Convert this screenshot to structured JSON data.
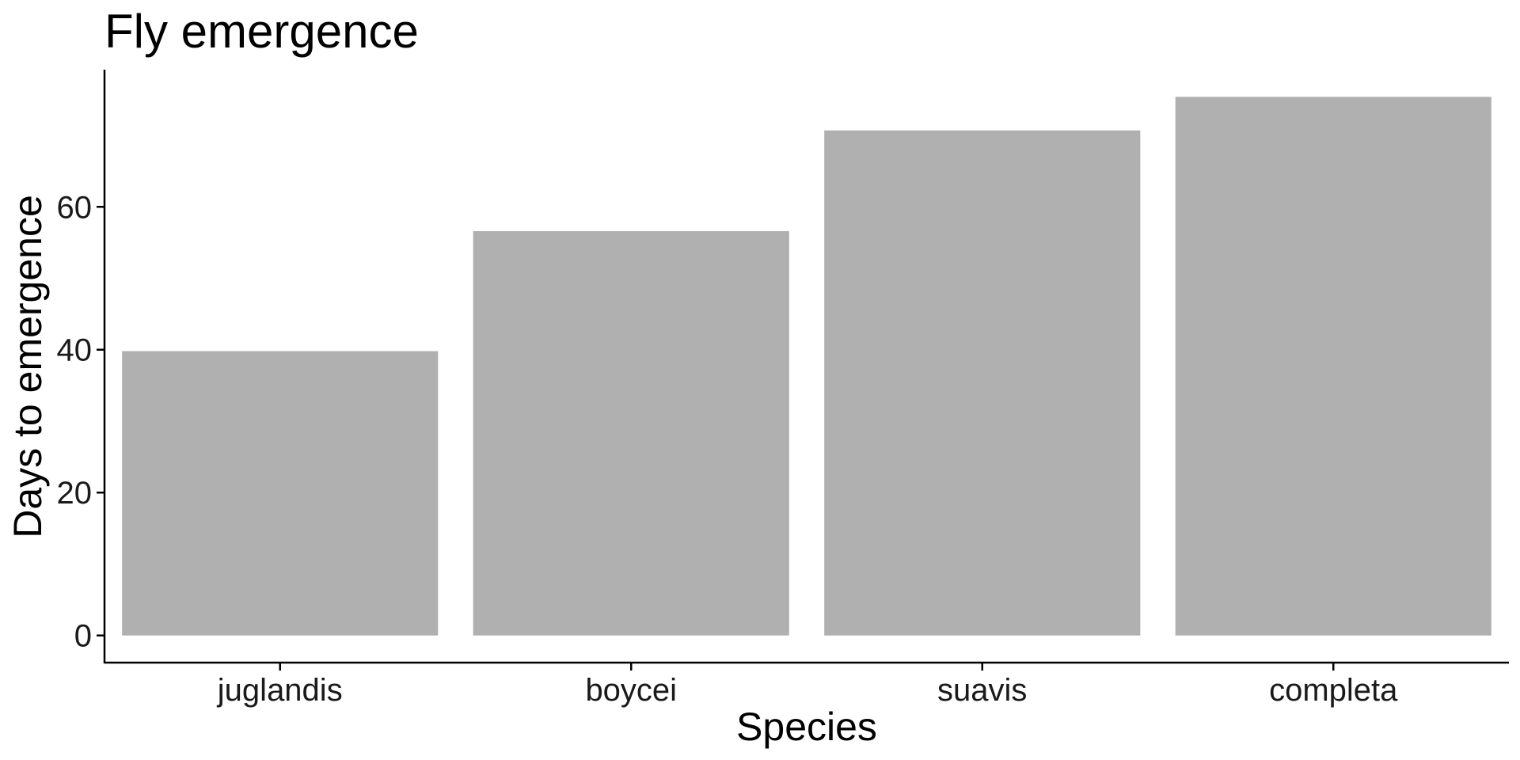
{
  "chart_data": {
    "type": "bar",
    "title": "Fly emergence",
    "xlabel": "Species",
    "ylabel": "Days to emergence",
    "categories": [
      "juglandis",
      "boycei",
      "suavis",
      "completa"
    ],
    "values": [
      39.8,
      56.6,
      70.7,
      75.4
    ],
    "ylim": [
      -3.8,
      79.2
    ],
    "yticks": [
      0,
      20,
      40,
      60
    ],
    "grid": false,
    "legend": "none",
    "bar_color": "#b0b0b0",
    "axis_color": "#000000"
  }
}
